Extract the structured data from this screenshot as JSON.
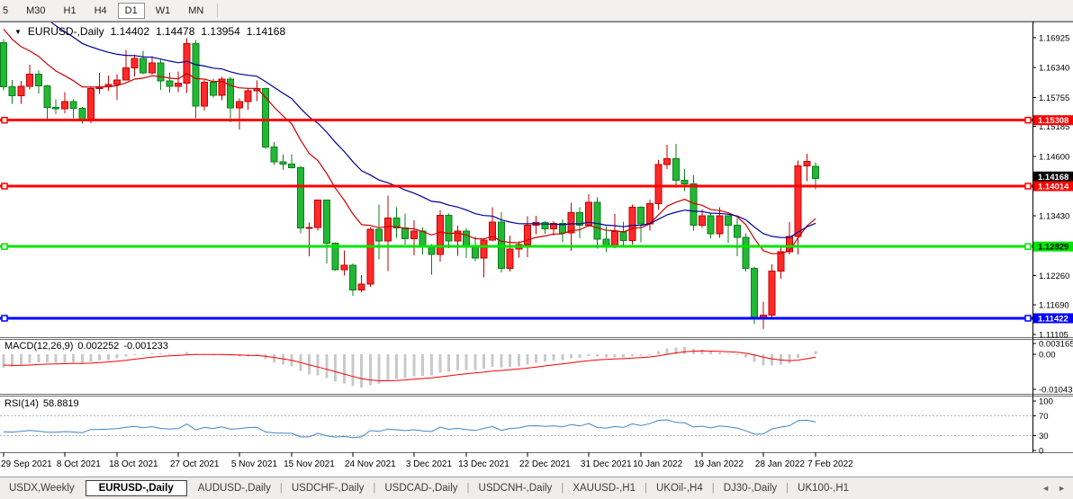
{
  "toolbar": {
    "timeframes": [
      "5",
      "M30",
      "H1",
      "H4",
      "D1",
      "W1",
      "MN"
    ],
    "active": "D1"
  },
  "chart_header": {
    "dropdown_icon": "▼",
    "title": "EURUSD-,Daily",
    "open": "1.14402",
    "high": "1.14478",
    "low": "1.13954",
    "close": "1.14168"
  },
  "chart_data": {
    "type": "candlestick",
    "symbol": "EURUSD-",
    "timeframe": "Daily",
    "ylim": [
      1.11069,
      1.17225
    ],
    "colors": {
      "bull_fill": "#ff2a2a",
      "bull_border": "#c00000",
      "bear_fill": "#22b834",
      "bear_border": "#0d7d1d",
      "ma_fast": "#cc0000",
      "ma_slow": "#000099",
      "hline_red": "#ff0000",
      "hline_green": "#00e400",
      "hline_blue": "#0000ff",
      "macd_histogram": "#c9c9c9",
      "macd_signal": "#ff0000",
      "rsi_line": "#3d85c8"
    },
    "price_ticks": [
      "1.16925",
      "1.16340",
      "1.15755",
      "1.15185",
      "1.14600",
      "1.13430",
      "1.12260",
      "1.11690",
      "1.11105"
    ],
    "hlines": [
      {
        "price": 1.15308,
        "label": "1.15308",
        "color": "#ff0000",
        "text_color": "#ffffff"
      },
      {
        "price": 1.14014,
        "label": "1.14014",
        "color": "#ff0000",
        "text_color": "#ffffff"
      },
      {
        "price": 1.12829,
        "label": "1.12829",
        "color": "#00e400",
        "text_color": "#000000"
      },
      {
        "price": 1.11422,
        "label": "1.11422",
        "color": "#0000ff",
        "text_color": "#ffffff"
      }
    ],
    "current_price": {
      "value": 1.14168,
      "label": "1.14168",
      "bg": "#000000",
      "text_color": "#ffffff"
    },
    "moving_averages": [
      {
        "name": "fast-ma",
        "color": "#cc0000"
      },
      {
        "name": "slow-ma",
        "color": "#000099"
      }
    ],
    "date_ticks": [
      "29 Sep 2021",
      "8 Oct 2021",
      "18 Oct 2021",
      "27 Oct 2021",
      "5 Nov 2021",
      "15 Nov 2021",
      "24 Nov 2021",
      "3 Dec 2021",
      "13 Dec 2021",
      "22 Dec 2021",
      "31 Dec 2021",
      "10 Jan 2022",
      "19 Jan 2022",
      "28 Jan 2022",
      "7 Feb 2022"
    ],
    "candles": [
      [
        "29 Sep 2021",
        1.1683,
        1.169,
        1.1589,
        1.1596
      ],
      [
        "30 Sep 2021",
        1.1596,
        1.161,
        1.1563,
        1.1579
      ],
      [
        "1 Oct 2021",
        1.1579,
        1.1608,
        1.1563,
        1.1597
      ],
      [
        "4 Oct 2021",
        1.1597,
        1.164,
        1.1591,
        1.1621
      ],
      [
        "5 Oct 2021",
        1.1621,
        1.1628,
        1.1583,
        1.1598
      ],
      [
        "6 Oct 2021",
        1.1598,
        1.16,
        1.1529,
        1.1556
      ],
      [
        "7 Oct 2021",
        1.1556,
        1.1572,
        1.1543,
        1.1553
      ],
      [
        "8 Oct 2021",
        1.1553,
        1.1586,
        1.1544,
        1.1567
      ],
      [
        "11 Oct 2021",
        1.1567,
        1.1572,
        1.1535,
        1.1554
      ],
      [
        "12 Oct 2021",
        1.1554,
        1.1557,
        1.1524,
        1.153
      ],
      [
        "13 Oct 2021",
        1.153,
        1.1597,
        1.1525,
        1.1593
      ],
      [
        "14 Oct 2021",
        1.1593,
        1.1624,
        1.1582,
        1.1596
      ],
      [
        "15 Oct 2021",
        1.1596,
        1.1618,
        1.1588,
        1.1601
      ],
      [
        "18 Oct 2021",
        1.1601,
        1.1621,
        1.1571,
        1.161
      ],
      [
        "19 Oct 2021",
        1.161,
        1.1669,
        1.1609,
        1.1633
      ],
      [
        "20 Oct 2021",
        1.1633,
        1.1659,
        1.1617,
        1.1652
      ],
      [
        "21 Oct 2021",
        1.1652,
        1.1667,
        1.1621,
        1.1624
      ],
      [
        "22 Oct 2021",
        1.1624,
        1.1656,
        1.162,
        1.1643
      ],
      [
        "25 Oct 2021",
        1.1643,
        1.1649,
        1.159,
        1.1608
      ],
      [
        "26 Oct 2021",
        1.1608,
        1.1625,
        1.1585,
        1.1597
      ],
      [
        "27 Oct 2021",
        1.1597,
        1.1626,
        1.1586,
        1.1603
      ],
      [
        "28 Oct 2021",
        1.1603,
        1.1692,
        1.1584,
        1.1681
      ],
      [
        "29 Oct 2021",
        1.1681,
        1.1688,
        1.1535,
        1.1558
      ],
      [
        "1 Nov 2021",
        1.1558,
        1.161,
        1.155,
        1.1605
      ],
      [
        "2 Nov 2021",
        1.1605,
        1.1612,
        1.1575,
        1.158
      ],
      [
        "3 Nov 2021",
        1.158,
        1.1616,
        1.157,
        1.1611
      ],
      [
        "4 Nov 2021",
        1.1611,
        1.1616,
        1.1527,
        1.1555
      ],
      [
        "5 Nov 2021",
        1.1555,
        1.1573,
        1.1513,
        1.1567
      ],
      [
        "8 Nov 2021",
        1.1567,
        1.1594,
        1.1551,
        1.1588
      ],
      [
        "9 Nov 2021",
        1.1588,
        1.1609,
        1.1568,
        1.1593
      ],
      [
        "10 Nov 2021",
        1.1593,
        1.1595,
        1.1475,
        1.1478
      ],
      [
        "11 Nov 2021",
        1.1478,
        1.1488,
        1.1443,
        1.1449
      ],
      [
        "12 Nov 2021",
        1.1449,
        1.1463,
        1.1433,
        1.1445
      ],
      [
        "15 Nov 2021",
        1.1445,
        1.1464,
        1.1436,
        1.1438
      ],
      [
        "16 Nov 2021",
        1.1438,
        1.1441,
        1.1309,
        1.1319
      ],
      [
        "17 Nov 2021",
        1.1319,
        1.133,
        1.1264,
        1.132
      ],
      [
        "18 Nov 2021",
        1.132,
        1.1374,
        1.1314,
        1.1374
      ],
      [
        "19 Nov 2021",
        1.1374,
        1.1374,
        1.125,
        1.1289
      ],
      [
        "22 Nov 2021",
        1.1289,
        1.1291,
        1.1236,
        1.1237
      ],
      [
        "23 Nov 2021",
        1.1237,
        1.1275,
        1.1226,
        1.1246
      ],
      [
        "24 Nov 2021",
        1.1246,
        1.125,
        1.1186,
        1.1198
      ],
      [
        "25 Nov 2021",
        1.1198,
        1.1227,
        1.1193,
        1.1209
      ],
      [
        "26 Nov 2021",
        1.1209,
        1.132,
        1.1204,
        1.1317
      ],
      [
        "29 Nov 2021",
        1.1317,
        1.1365,
        1.1258,
        1.1294
      ],
      [
        "30 Nov 2021",
        1.1294,
        1.1383,
        1.1235,
        1.1339
      ],
      [
        "1 Dec 2021",
        1.1339,
        1.136,
        1.13,
        1.1319
      ],
      [
        "2 Dec 2021",
        1.1319,
        1.1348,
        1.1287,
        1.1298
      ],
      [
        "3 Dec 2021",
        1.1298,
        1.1334,
        1.1266,
        1.1313
      ],
      [
        "6 Dec 2021",
        1.1313,
        1.132,
        1.1267,
        1.1284
      ],
      [
        "7 Dec 2021",
        1.1284,
        1.1288,
        1.1228,
        1.1267
      ],
      [
        "8 Dec 2021",
        1.1267,
        1.1354,
        1.1253,
        1.1344
      ],
      [
        "9 Dec 2021",
        1.1344,
        1.1348,
        1.128,
        1.1294
      ],
      [
        "10 Dec 2021",
        1.1294,
        1.1324,
        1.1265,
        1.1313
      ],
      [
        "13 Dec 2021",
        1.1313,
        1.1319,
        1.126,
        1.1283
      ],
      [
        "14 Dec 2021",
        1.1283,
        1.1303,
        1.1254,
        1.126
      ],
      [
        "15 Dec 2021",
        1.126,
        1.1297,
        1.1222,
        1.1296
      ],
      [
        "16 Dec 2021",
        1.1296,
        1.136,
        1.1293,
        1.1331
      ],
      [
        "17 Dec 2021",
        1.1331,
        1.135,
        1.1232,
        1.124
      ],
      [
        "20 Dec 2021",
        1.124,
        1.1304,
        1.1234,
        1.1278
      ],
      [
        "21 Dec 2021",
        1.1278,
        1.1293,
        1.1261,
        1.1287
      ],
      [
        "22 Dec 2021",
        1.1287,
        1.1342,
        1.1262,
        1.1325
      ],
      [
        "23 Dec 2021",
        1.1325,
        1.1343,
        1.1307,
        1.133
      ],
      [
        "24 Dec 2021",
        1.133,
        1.1333,
        1.1308,
        1.1318
      ],
      [
        "27 Dec 2021",
        1.1318,
        1.1333,
        1.1304,
        1.1328
      ],
      [
        "28 Dec 2021",
        1.1328,
        1.1336,
        1.1291,
        1.131
      ],
      [
        "29 Dec 2021",
        1.131,
        1.1369,
        1.1274,
        1.1349
      ],
      [
        "30 Dec 2021",
        1.1349,
        1.136,
        1.1299,
        1.1325
      ],
      [
        "31 Dec 2021",
        1.1325,
        1.1386,
        1.1321,
        1.137
      ],
      [
        "3 Jan 2022",
        1.137,
        1.1379,
        1.1279,
        1.1297
      ],
      [
        "4 Jan 2022",
        1.1297,
        1.1323,
        1.1272,
        1.1285
      ],
      [
        "5 Jan 2022",
        1.1285,
        1.1347,
        1.128,
        1.1312
      ],
      [
        "6 Jan 2022",
        1.1312,
        1.1332,
        1.1285,
        1.1295
      ],
      [
        "7 Jan 2022",
        1.1295,
        1.1365,
        1.1287,
        1.136
      ],
      [
        "10 Jan 2022",
        1.136,
        1.1362,
        1.1291,
        1.1327
      ],
      [
        "11 Jan 2022",
        1.1327,
        1.1375,
        1.1314,
        1.1367
      ],
      [
        "12 Jan 2022",
        1.1367,
        1.1453,
        1.1355,
        1.1444
      ],
      [
        "13 Jan 2022",
        1.1444,
        1.1483,
        1.1435,
        1.1455
      ],
      [
        "14 Jan 2022",
        1.1455,
        1.1484,
        1.1398,
        1.1413
      ],
      [
        "17 Jan 2022",
        1.1413,
        1.1435,
        1.1392,
        1.1406
      ],
      [
        "18 Jan 2022",
        1.1406,
        1.1423,
        1.1314,
        1.1325
      ],
      [
        "19 Jan 2022",
        1.1325,
        1.1356,
        1.1319,
        1.1343
      ],
      [
        "20 Jan 2022",
        1.1343,
        1.1348,
        1.1299,
        1.1308
      ],
      [
        "21 Jan 2022",
        1.1308,
        1.136,
        1.13,
        1.1343
      ],
      [
        "24 Jan 2022",
        1.1343,
        1.1344,
        1.129,
        1.1325
      ],
      [
        "25 Jan 2022",
        1.1325,
        1.1339,
        1.1264,
        1.1301
      ],
      [
        "26 Jan 2022",
        1.1301,
        1.1309,
        1.1234,
        1.124
      ],
      [
        "27 Jan 2022",
        1.124,
        1.1244,
        1.1131,
        1.1144
      ],
      [
        "28 Jan 2022",
        1.1144,
        1.1175,
        1.1121,
        1.1148
      ],
      [
        "31 Jan 2022",
        1.1148,
        1.1248,
        1.1141,
        1.1235
      ],
      [
        "1 Feb 2022",
        1.1235,
        1.1283,
        1.122,
        1.1273
      ],
      [
        "2 Feb 2022",
        1.1273,
        1.1331,
        1.1267,
        1.1303
      ],
      [
        "3 Feb 2022",
        1.1303,
        1.1452,
        1.1267,
        1.1441
      ],
      [
        "4 Feb 2022",
        1.1441,
        1.1465,
        1.1411,
        1.145
      ],
      [
        "7 Feb 2022",
        1.14402,
        1.14478,
        1.13954,
        1.14168
      ]
    ],
    "macd": {
      "label": "MACD(12,26,9)",
      "value": "0.002252",
      "signal": "-0.001233",
      "periods": [
        12,
        26,
        9
      ],
      "scale_ticks": [
        {
          "label": "0.003165",
          "value": 0.003165
        },
        {
          "label": "0.00",
          "value": 0
        },
        {
          "label": "-0.010431",
          "value": -0.010431
        }
      ]
    },
    "rsi": {
      "label": "RSI(14)",
      "value": "58.8819",
      "period": 14,
      "levels": [
        70,
        30
      ],
      "scale_ticks": [
        {
          "label": "100",
          "value": 100
        },
        {
          "label": "70",
          "value": 70
        },
        {
          "label": "30",
          "value": 30
        },
        {
          "label": "0",
          "value": 0
        }
      ]
    }
  },
  "tabs": {
    "items": [
      {
        "label": "USDX,Weekly",
        "active": false
      },
      {
        "label": "EURUSD-,Daily",
        "active": true
      },
      {
        "label": "AUDUSD-,Daily",
        "active": false
      },
      {
        "label": "USDCHF-,Daily",
        "active": false
      },
      {
        "label": "USDCAD-,Daily",
        "active": false
      },
      {
        "label": "USDCNH-,Daily",
        "active": false
      },
      {
        "label": "XAUUSD-,H1",
        "active": false
      },
      {
        "label": "UKOil-,H4",
        "active": false
      },
      {
        "label": "DJ30-,Daily",
        "active": false
      },
      {
        "label": "UK100-,H1",
        "active": false
      }
    ],
    "scroll_left": "◄",
    "scroll_right": "►"
  }
}
